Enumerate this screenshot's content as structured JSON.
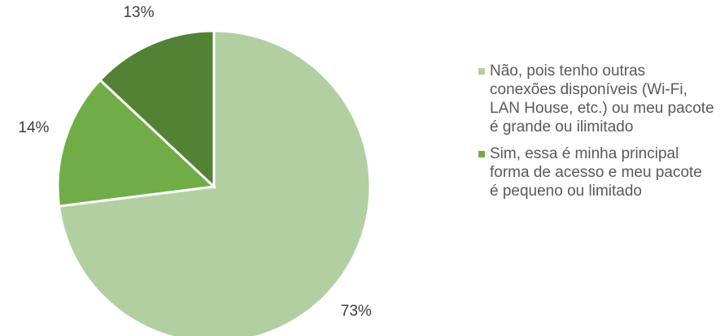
{
  "chart_data": {
    "type": "pie",
    "categories": [
      "Não, pois tenho outras conexões disponíveis (Wi-Fi, LAN House, etc.) ou meu pacote é grande ou ilimitado",
      "Sim, essa é minha principal forma de acesso e meu pacote é pequeno ou limitado",
      null
    ],
    "values": [
      73,
      14,
      13
    ],
    "value_labels": [
      "73%",
      "14%",
      "13%"
    ],
    "colors": [
      "#b2cfa2",
      "#70ad47",
      "#548235"
    ],
    "legend": "right"
  }
}
